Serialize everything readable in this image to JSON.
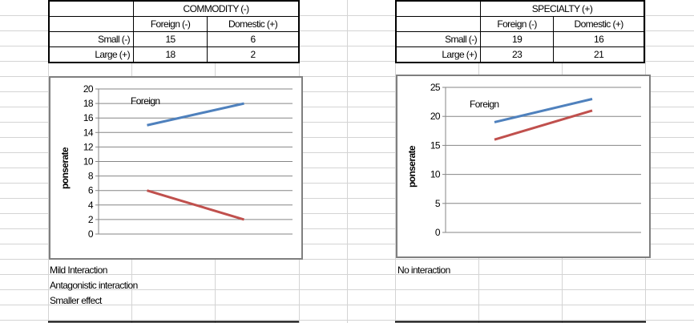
{
  "tables": [
    {
      "title": "COMMODITY (-)",
      "col_headers": [
        "Foreign (-)",
        "Domestic (+)"
      ],
      "rows": [
        {
          "label": "Small (-)",
          "values": [
            "15",
            "6"
          ]
        },
        {
          "label": "Large (+)",
          "values": [
            "18",
            "2"
          ]
        }
      ]
    },
    {
      "title": "SPECIALTY (+)",
      "col_headers": [
        "Foreign (-)",
        "Domestic (+)"
      ],
      "rows": [
        {
          "label": "Small (-)",
          "values": [
            "19",
            "16"
          ]
        },
        {
          "label": "Large (+)",
          "values": [
            "23",
            "21"
          ]
        }
      ]
    }
  ],
  "chart_data": [
    {
      "type": "line",
      "title": "",
      "xlabel": "",
      "ylabel": "ponserate",
      "ylim": [
        0,
        20
      ],
      "yticks": [
        0,
        2,
        4,
        6,
        8,
        10,
        12,
        14,
        16,
        18,
        20
      ],
      "grid": true,
      "annotation": "Foreign",
      "series": [
        {
          "color": "#4f81bd",
          "values": [
            15,
            18
          ]
        },
        {
          "color": "#c0504d",
          "values": [
            6,
            2
          ]
        }
      ]
    },
    {
      "type": "line",
      "title": "",
      "xlabel": "",
      "ylabel": "ponserate",
      "ylim": [
        0,
        25
      ],
      "yticks": [
        0,
        5,
        10,
        15,
        20,
        25
      ],
      "grid": true,
      "annotation": "Foreign",
      "series": [
        {
          "color": "#4f81bd",
          "values": [
            19,
            23
          ]
        },
        {
          "color": "#c0504d",
          "values": [
            16,
            21
          ]
        }
      ]
    }
  ],
  "notes_left": [
    "Mild Interaction",
    "Antagonistic interaction",
    "Smaller effect"
  ],
  "notes_right": [
    "No interaction"
  ]
}
